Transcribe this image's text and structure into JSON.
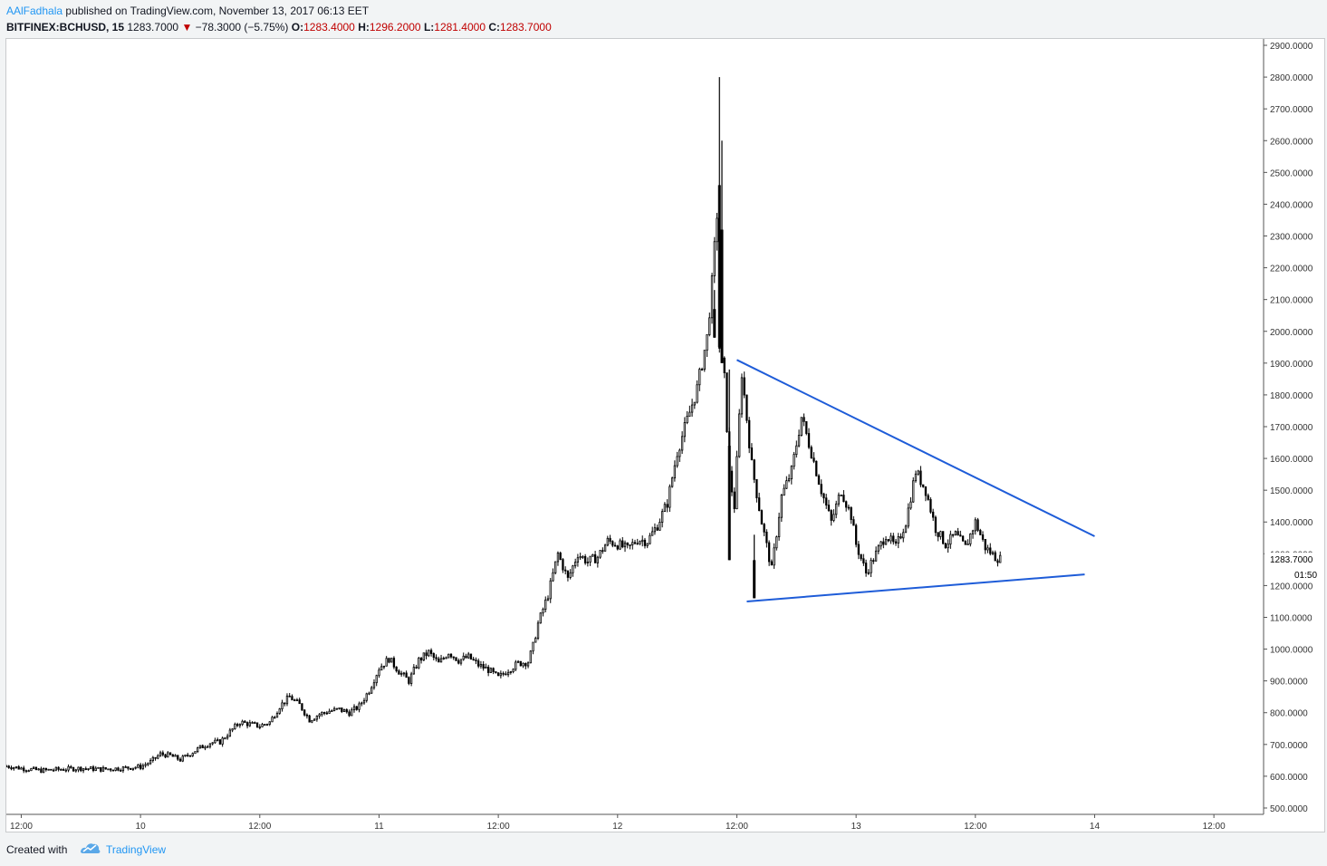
{
  "header": {
    "author": "AAlFadhala",
    "published_text": "published on TradingView.com, November 13, 2017 06:13 EET",
    "symbol": "BITFINEX:BCHUSD, 15",
    "last_price": "1283.7000",
    "change_arrow": "▼",
    "change": "−78.3000 (−5.75%)",
    "ohlc": [
      {
        "label": "O:",
        "value": "1283.4000"
      },
      {
        "label": "H:",
        "value": "1296.2000"
      },
      {
        "label": "L:",
        "value": "1281.4000"
      },
      {
        "label": "C:",
        "value": "1283.7000"
      }
    ]
  },
  "footer": {
    "created_with": "Created with",
    "brand": "TradingView"
  },
  "colors": {
    "candle": "#000000",
    "trendline": "#1e5cd8",
    "down": "#c00000",
    "accent": "#2196f3",
    "axis": "#555555"
  },
  "chart_data": {
    "type": "candlestick",
    "interval": "15",
    "ylim": [
      480,
      2920
    ],
    "y_ticks": [
      500,
      600,
      700,
      800,
      900,
      1000,
      1100,
      1200,
      1300,
      1400,
      1500,
      1600,
      1700,
      1800,
      1900,
      2000,
      2100,
      2200,
      2300,
      2400,
      2500,
      2600,
      2700,
      2800,
      2900
    ],
    "y_tick_labels": [
      "500.0000",
      "600.0000",
      "700.0000",
      "800.0000",
      "900.0000",
      "1000.0000",
      "1100.0000",
      "1200.0000",
      "1300.0000",
      "1400.0000",
      "1500.0000",
      "1600.0000",
      "1700.0000",
      "1800.0000",
      "1900.0000",
      "2000.0000",
      "2100.0000",
      "2200.0000",
      "2300.0000",
      "2400.0000",
      "2500.0000",
      "2600.0000",
      "2700.0000",
      "2800.0000",
      "2900.0000"
    ],
    "x_range": [
      "2017-11-09 10:30",
      "2017-11-14 17:00"
    ],
    "x_ticks": [
      {
        "t": "2017-11-09 12:00",
        "label": "12:00"
      },
      {
        "t": "2017-11-10 00:00",
        "label": "10"
      },
      {
        "t": "2017-11-10 12:00",
        "label": "12:00"
      },
      {
        "t": "2017-11-11 00:00",
        "label": "11"
      },
      {
        "t": "2017-11-11 12:00",
        "label": "12:00"
      },
      {
        "t": "2017-11-12 00:00",
        "label": "12"
      },
      {
        "t": "2017-11-12 12:00",
        "label": "12:00"
      },
      {
        "t": "2017-11-13 00:00",
        "label": "13"
      },
      {
        "t": "2017-11-13 12:00",
        "label": "12:00"
      },
      {
        "t": "2017-11-14 00:00",
        "label": "14"
      },
      {
        "t": "2017-11-14 12:00",
        "label": "12:00"
      }
    ],
    "price_path": [
      [
        "2017-11-09 10:30",
        632
      ],
      [
        "2017-11-09 12:00",
        625
      ],
      [
        "2017-11-09 14:00",
        618
      ],
      [
        "2017-11-09 16:00",
        622
      ],
      [
        "2017-11-09 18:00",
        625
      ],
      [
        "2017-11-09 20:00",
        622
      ],
      [
        "2017-11-09 22:00",
        625
      ],
      [
        "2017-11-10 00:00",
        630
      ],
      [
        "2017-11-10 01:00",
        645
      ],
      [
        "2017-11-10 02:00",
        670
      ],
      [
        "2017-11-10 03:00",
        665
      ],
      [
        "2017-11-10 04:00",
        652
      ],
      [
        "2017-11-10 06:00",
        690
      ],
      [
        "2017-11-10 07:00",
        705
      ],
      [
        "2017-11-10 08:00",
        708
      ],
      [
        "2017-11-10 09:00",
        740
      ],
      [
        "2017-11-10 10:00",
        770
      ],
      [
        "2017-11-10 12:00",
        758
      ],
      [
        "2017-11-10 13:00",
        770
      ],
      [
        "2017-11-10 14:00",
        820
      ],
      [
        "2017-11-10 15:00",
        850
      ],
      [
        "2017-11-10 16:00",
        825
      ],
      [
        "2017-11-10 17:00",
        778
      ],
      [
        "2017-11-10 18:00",
        795
      ],
      [
        "2017-11-10 19:00",
        805
      ],
      [
        "2017-11-10 20:00",
        810
      ],
      [
        "2017-11-10 21:00",
        800
      ],
      [
        "2017-11-10 22:00",
        820
      ],
      [
        "2017-11-10 23:00",
        870
      ],
      [
        "2017-11-11 00:00",
        940
      ],
      [
        "2017-11-11 01:00",
        970
      ],
      [
        "2017-11-11 02:00",
        930
      ],
      [
        "2017-11-11 03:00",
        900
      ],
      [
        "2017-11-11 04:00",
        965
      ],
      [
        "2017-11-11 05:00",
        990
      ],
      [
        "2017-11-11 06:00",
        955
      ],
      [
        "2017-11-11 07:00",
        990
      ],
      [
        "2017-11-11 08:00",
        965
      ],
      [
        "2017-11-11 09:00",
        975
      ],
      [
        "2017-11-11 10:00",
        950
      ],
      [
        "2017-11-11 11:00",
        935
      ],
      [
        "2017-11-11 12:00",
        910
      ],
      [
        "2017-11-11 13:00",
        935
      ],
      [
        "2017-11-11 14:00",
        955
      ],
      [
        "2017-11-11 15:00",
        960
      ],
      [
        "2017-11-11 15:30",
        1010
      ],
      [
        "2017-11-11 16:00",
        1080
      ],
      [
        "2017-11-11 17:00",
        1170
      ],
      [
        "2017-11-11 18:00",
        1300
      ],
      [
        "2017-11-11 19:00",
        1220
      ],
      [
        "2017-11-11 20:00",
        1300
      ],
      [
        "2017-11-11 21:00",
        1275
      ],
      [
        "2017-11-11 22:00",
        1290
      ],
      [
        "2017-11-11 23:00",
        1340
      ],
      [
        "2017-11-12 00:00",
        1330
      ],
      [
        "2017-11-12 01:00",
        1315
      ],
      [
        "2017-11-12 02:00",
        1345
      ],
      [
        "2017-11-12 03:00",
        1340
      ],
      [
        "2017-11-12 04:00",
        1390
      ],
      [
        "2017-11-12 05:00",
        1460
      ],
      [
        "2017-11-12 06:00",
        1620
      ],
      [
        "2017-11-12 07:00",
        1720
      ],
      [
        "2017-11-12 08:00",
        1820
      ],
      [
        "2017-11-12 09:00",
        1980
      ],
      [
        "2017-11-12 09:30",
        2150
      ],
      [
        "2017-11-12 10:00",
        2370
      ],
      [
        "2017-11-12 10:15",
        1950
      ],
      [
        "2017-11-12 10:45",
        1850
      ],
      [
        "2017-11-12 11:15",
        1550
      ],
      [
        "2017-11-12 11:45",
        1450
      ],
      [
        "2017-11-12 12:30",
        1870
      ],
      [
        "2017-11-12 13:30",
        1580
      ],
      [
        "2017-11-12 14:30",
        1400
      ],
      [
        "2017-11-12 15:30",
        1250
      ],
      [
        "2017-11-12 16:30",
        1480
      ],
      [
        "2017-11-12 17:30",
        1560
      ],
      [
        "2017-11-12 18:30",
        1730
      ],
      [
        "2017-11-12 19:30",
        1620
      ],
      [
        "2017-11-12 20:30",
        1500
      ],
      [
        "2017-11-12 21:30",
        1400
      ],
      [
        "2017-11-12 22:30",
        1500
      ],
      [
        "2017-11-12 23:30",
        1420
      ],
      [
        "2017-11-13 00:00",
        1330
      ],
      [
        "2017-11-13 01:00",
        1240
      ],
      [
        "2017-11-13 02:00",
        1300
      ],
      [
        "2017-11-13 03:00",
        1360
      ],
      [
        "2017-11-13 04:00",
        1320
      ],
      [
        "2017-11-13 05:00",
        1400
      ],
      [
        "2017-11-13 06:00",
        1560
      ],
      [
        "2017-11-13 07:00",
        1500
      ],
      [
        "2017-11-13 08:00",
        1380
      ],
      [
        "2017-11-13 09:00",
        1330
      ],
      [
        "2017-11-13 10:00",
        1360
      ],
      [
        "2017-11-13 11:00",
        1320
      ],
      [
        "2017-11-13 12:00",
        1400
      ],
      [
        "2017-11-13 13:00",
        1320
      ],
      [
        "2017-11-13 14:00",
        1290
      ],
      [
        "2017-11-13 14:30",
        1283.7
      ]
    ],
    "spikes": [
      {
        "t": "2017-11-12 10:15",
        "low": 1950,
        "high": 2800
      },
      {
        "t": "2017-11-12 10:30",
        "low": 1900,
        "high": 2600
      },
      {
        "t": "2017-11-12 09:45",
        "low": 1980,
        "high": 2130
      },
      {
        "t": "2017-11-12 11:15",
        "low": 1280,
        "high": 1880
      },
      {
        "t": "2017-11-12 13:45",
        "low": 1160,
        "high": 1360
      }
    ],
    "trendlines": [
      {
        "name": "upper",
        "p1": [
          "2017-11-12 12:00",
          1910
        ],
        "p2": [
          "2017-11-14 00:00",
          1355
        ]
      },
      {
        "name": "lower",
        "p1": [
          "2017-11-12 13:00",
          1150
        ],
        "p2": [
          "2017-11-13 23:00",
          1235
        ]
      }
    ],
    "last_price_label": "1283.7000",
    "countdown_label": "01:50"
  }
}
